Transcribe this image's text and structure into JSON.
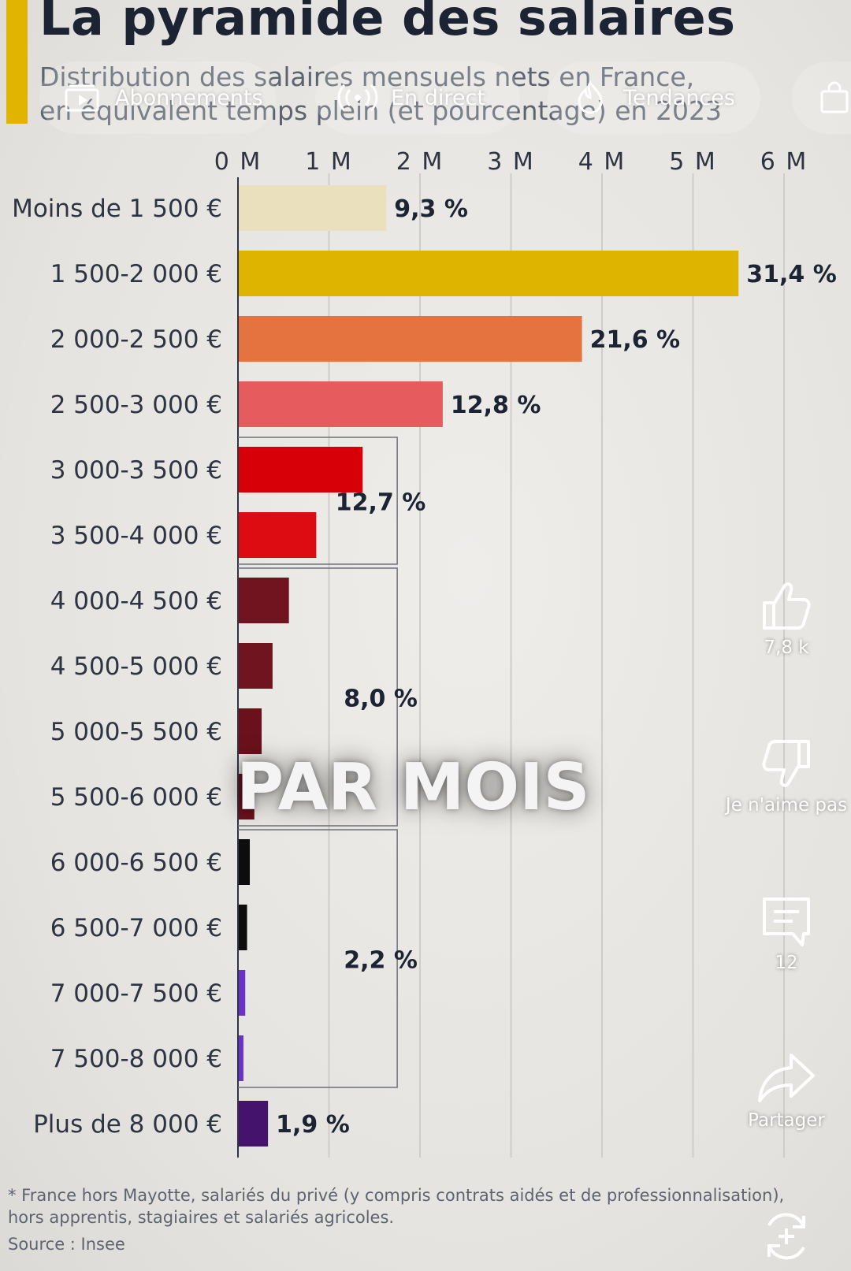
{
  "header": {
    "title": "La pyramide des salaires",
    "subtitle": "Distribution des salaires mensuels nets en France,\nen équivalent temps plein (et pourcentage) en 2023"
  },
  "nav": {
    "tabs": [
      {
        "label": "Abonnements",
        "icon": "subscriptions-icon"
      },
      {
        "label": "En direct",
        "icon": "live-icon"
      },
      {
        "label": "Tendances",
        "icon": "trending-flame-icon"
      },
      {
        "label": "",
        "icon": "shopping-bag-icon"
      }
    ]
  },
  "chart_data": {
    "type": "bar",
    "orientation": "horizontal",
    "categories": [
      "Moins de 1 500 €",
      "1 500-2 000 €",
      "2 000-2 500 €",
      "2 500-3 000 €",
      "3 000-3 500 €",
      "3 500-4 000 €",
      "4 000-4 500 €",
      "4 500-5 000 €",
      "5 000-5 500 €",
      "5 500-6 000 €",
      "6 000-6 500 €",
      "6 500-7 000 €",
      "7 000-7 500 €",
      "7 500-8 000 €",
      "Plus de 8 000 €"
    ],
    "values": [
      1.63,
      5.5,
      3.78,
      2.25,
      1.37,
      0.86,
      0.56,
      0.38,
      0.26,
      0.18,
      0.13,
      0.1,
      0.08,
      0.06,
      0.33
    ],
    "colors": [
      "#eae0bd",
      "#deb400",
      "#e47340",
      "#e65c5e",
      "#d70009",
      "#dd0c13",
      "#711420",
      "#701420",
      "#6b111c",
      "#6b111c",
      "#0d0d0d",
      "#0d0d0d",
      "#6a32c6",
      "#6a32c6",
      "#44136b"
    ],
    "bar_labels": [
      {
        "index": 0,
        "text": "9,3 %"
      },
      {
        "index": 1,
        "text": "31,4 %"
      },
      {
        "index": 2,
        "text": "21,6 %"
      },
      {
        "index": 3,
        "text": "12,8 %"
      },
      {
        "index": 14,
        "text": "1,9 %"
      }
    ],
    "group_labels": [
      {
        "from": 4,
        "to": 5,
        "text": "12,7 %"
      },
      {
        "from": 6,
        "to": 9,
        "text": "8,0 %"
      },
      {
        "from": 10,
        "to": 13,
        "text": "2,2 %"
      }
    ],
    "x_ticks": [
      0,
      1,
      2,
      3,
      4,
      5,
      6
    ],
    "x_tick_labels": [
      "0 M",
      "1 M",
      "2 M",
      "3 M",
      "4 M",
      "5 M",
      "6 M"
    ],
    "xlim": [
      0,
      6
    ],
    "tick_position": "top",
    "grid": true
  },
  "overlay": {
    "caption": "PAR MOIS"
  },
  "footer": {
    "footnote": "* France hors Mayotte, salariés du privé (y compris contrats aidés et de professionnalisation),\n  hors apprentis, stagiaires et salariés agricoles.",
    "source": "Source : Insee"
  },
  "actions": {
    "like_count": "7,8 k",
    "dislike_label": "Je n'aime pas",
    "comments_count": "12",
    "share_label": "Partager"
  }
}
